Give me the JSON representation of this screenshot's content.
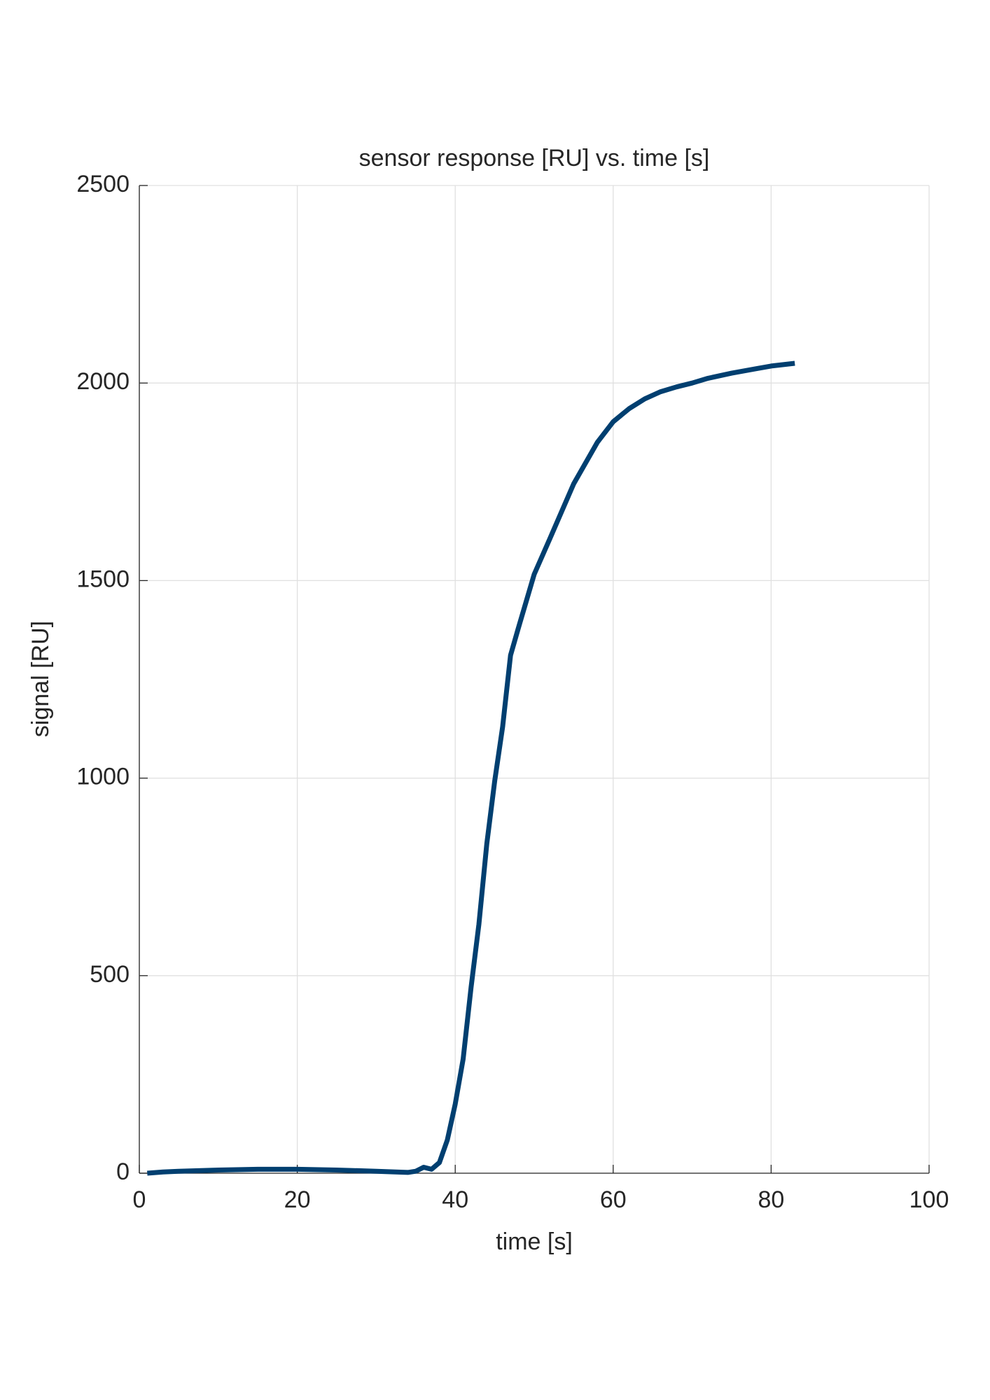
{
  "chart_data": {
    "type": "line",
    "title": "sensor response [RU] vs. time [s]",
    "x_label": "time [s]",
    "y_label": "signal [RU]",
    "x": [
      1,
      3,
      5,
      10,
      15,
      20,
      25,
      30,
      34,
      35,
      36,
      37,
      38,
      39,
      40,
      41,
      42,
      43,
      44,
      45,
      46,
      47,
      48,
      49,
      50,
      52,
      55,
      58,
      60,
      62,
      64,
      66,
      68,
      70,
      72,
      75,
      78,
      80,
      83
    ],
    "series": [
      {
        "color": "#003f70",
        "values": [
          0,
          3,
          5,
          8,
          10,
          10,
          8,
          5,
          2,
          5,
          15,
          10,
          27,
          84,
          175,
          289,
          470,
          630,
          834,
          993,
          1130,
          1311,
          1380,
          1448,
          1516,
          1607,
          1745,
          1850,
          1902,
          1935,
          1960,
          1978,
          1990,
          2000,
          2012,
          2025,
          2036,
          2043,
          2050
        ]
      }
    ],
    "xlim": [
      0,
      100
    ],
    "xticks": [
      0,
      20,
      40,
      60,
      80,
      100
    ],
    "ylim": [
      0,
      2500
    ],
    "yticks": [
      0,
      500,
      1000,
      1500,
      2000,
      2500
    ],
    "grid": true
  }
}
